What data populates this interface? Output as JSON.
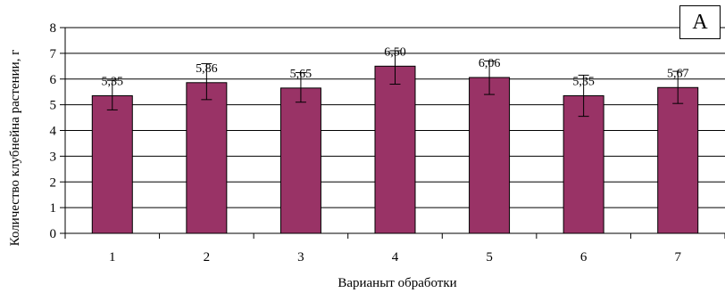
{
  "panel_label": "А",
  "chart_data": {
    "type": "bar",
    "categories": [
      "1",
      "2",
      "3",
      "4",
      "5",
      "6",
      "7"
    ],
    "values": [
      5.35,
      5.86,
      5.65,
      6.5,
      6.06,
      5.35,
      5.67
    ],
    "value_labels": [
      "5,35",
      "5,86",
      "5,65",
      "6,50",
      "6,06",
      "5,35",
      "5,67"
    ],
    "error_low": [
      4.8,
      5.2,
      5.1,
      5.8,
      5.4,
      4.55,
      5.05
    ],
    "error_high": [
      5.95,
      6.6,
      6.25,
      7.1,
      6.7,
      6.15,
      6.3
    ],
    "xlabel": "Варианыт обработки",
    "ylabel": "Количество клубнейна растении, г",
    "ylim": [
      0,
      8
    ],
    "yticks": [
      "0",
      "1",
      "2",
      "3",
      "4",
      "5",
      "6",
      "7",
      "8"
    ],
    "grid": true,
    "bar_color": "#993366",
    "bar_edge_color": "#000000"
  }
}
